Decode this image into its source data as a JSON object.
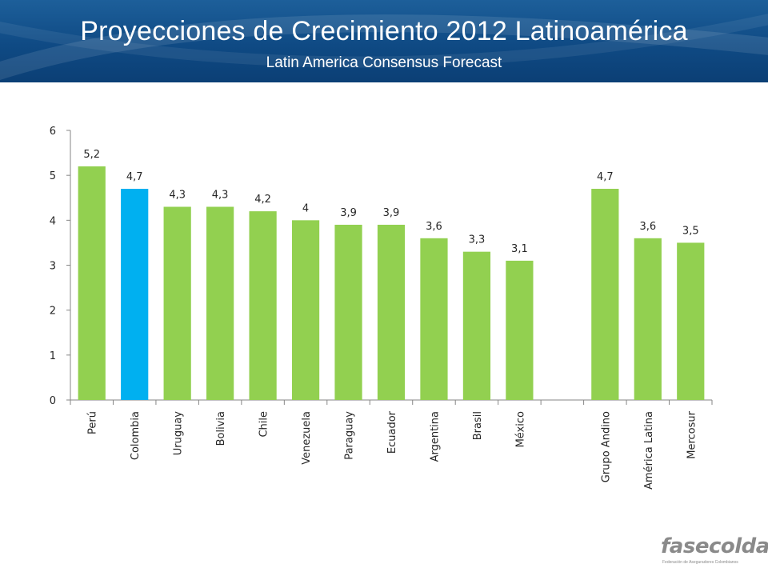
{
  "header": {
    "title": "Proyecciones de Crecimiento 2012 Latinoamérica",
    "subtitle": "Latin America Consensus Forecast",
    "background_color": "#0f4a84"
  },
  "logo": {
    "wordmark": "fasecolda",
    "tagline": "Federación de Aseguradores Colombianos"
  },
  "chart_data": {
    "type": "bar",
    "title": "",
    "xlabel": "",
    "ylabel": "",
    "ylim": [
      0,
      6
    ],
    "yticks": [
      0,
      1,
      2,
      3,
      4,
      5,
      6
    ],
    "grid": false,
    "legend": "none",
    "categories": [
      "Perú",
      "Colombia",
      "Uruguay",
      "Bolivia",
      "Chile",
      "Venezuela",
      "Paraguay",
      "Ecuador",
      "Argentina",
      "Brasil",
      "México",
      "",
      "Grupo Andino",
      "América Latina",
      "Mercosur"
    ],
    "values": [
      5.2,
      4.7,
      4.3,
      4.3,
      4.2,
      4,
      3.9,
      3.9,
      3.6,
      3.3,
      3.1,
      null,
      4.7,
      3.6,
      3.5
    ],
    "data_labels": [
      "5,2",
      "4,7",
      "4,3",
      "4,3",
      "4,2",
      "4",
      "3,9",
      "3,9",
      "3,6",
      "3,3",
      "3,1",
      "",
      "4,7",
      "3,6",
      "3,5"
    ],
    "colors": [
      "#92d050",
      "#00b0f0",
      "#92d050",
      "#92d050",
      "#92d050",
      "#92d050",
      "#92d050",
      "#92d050",
      "#92d050",
      "#92d050",
      "#92d050",
      "#92d050",
      "#92d050",
      "#92d050",
      "#92d050"
    ]
  }
}
